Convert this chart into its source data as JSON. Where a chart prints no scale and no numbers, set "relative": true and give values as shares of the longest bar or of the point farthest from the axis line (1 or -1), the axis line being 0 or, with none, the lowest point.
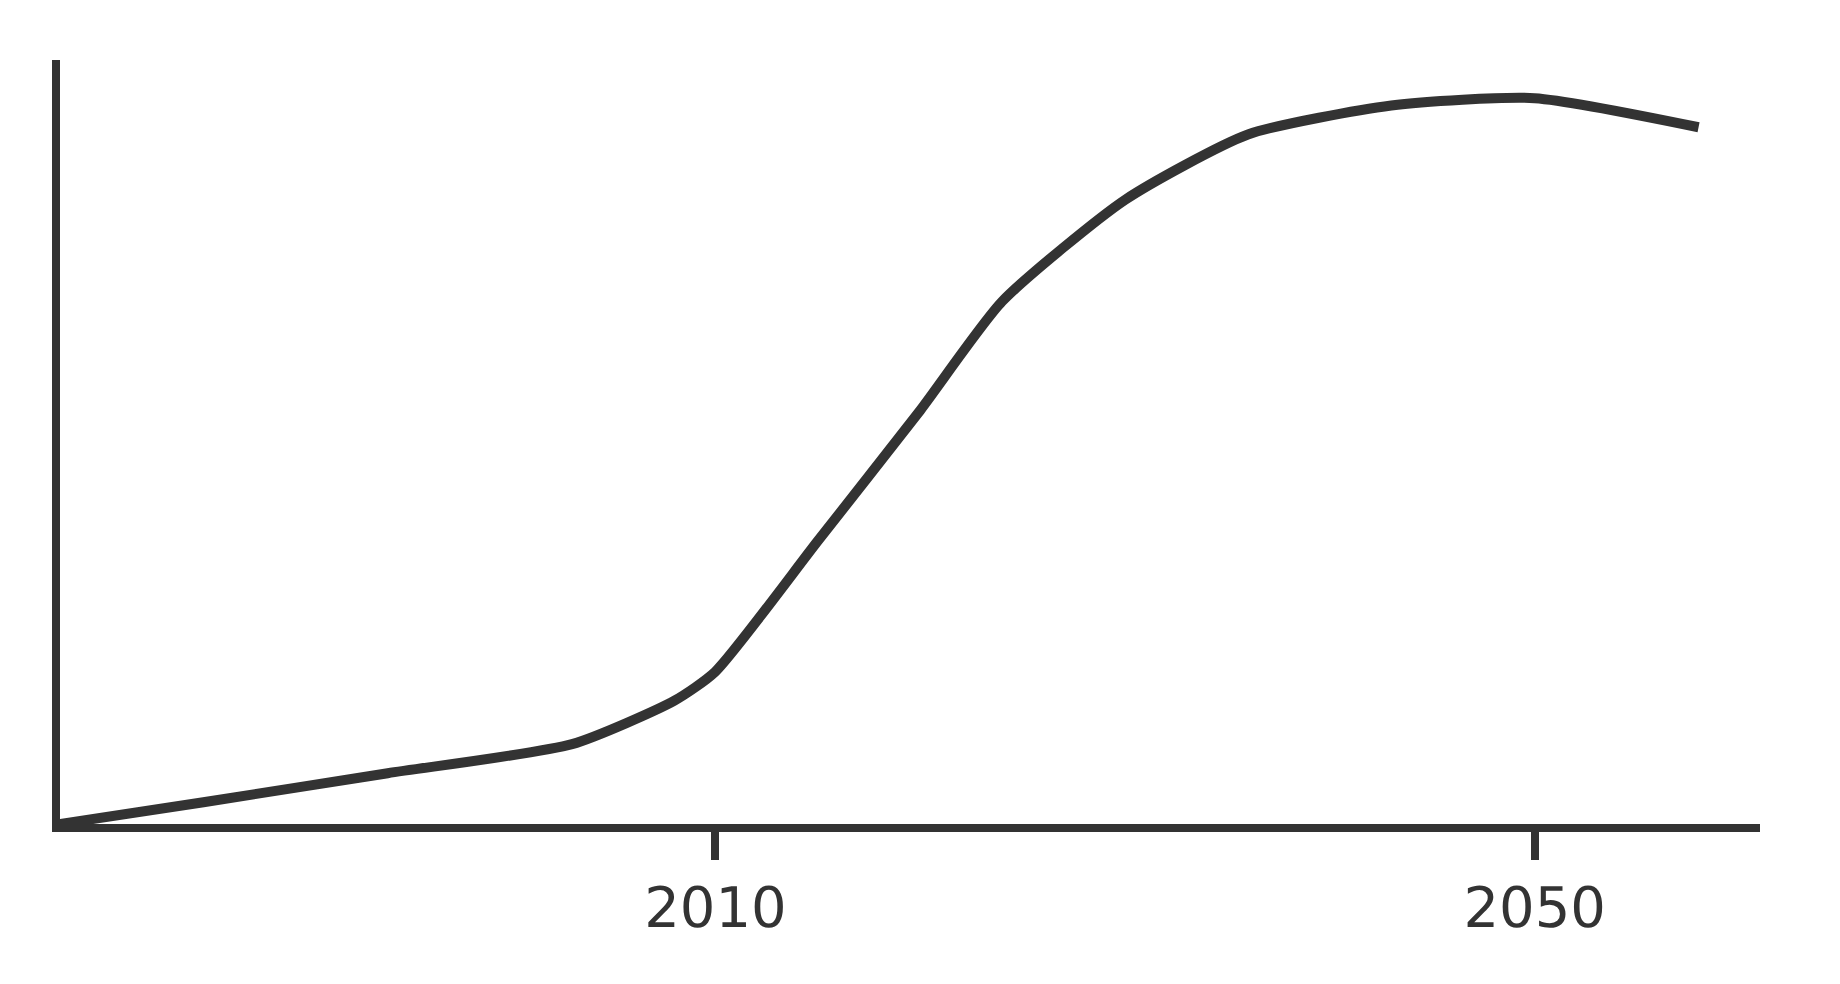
{
  "chart_data": {
    "type": "line",
    "relative": true,
    "x": [
      1978,
      1985,
      1994,
      2003,
      2008,
      2010,
      2015,
      2020,
      2024,
      2030,
      2036,
      2043,
      2050,
      2058
    ],
    "series": [
      {
        "color": "#333333",
        "values": [
          0,
          0.03,
          0.07,
          0.11,
          0.17,
          0.21,
          0.39,
          0.57,
          0.72,
          0.86,
          0.95,
          0.99,
          1,
          0.96
        ]
      }
    ],
    "xlim": [
      1978,
      2061
    ],
    "xticks": [
      2010,
      2050
    ],
    "line_style": "solid"
  }
}
